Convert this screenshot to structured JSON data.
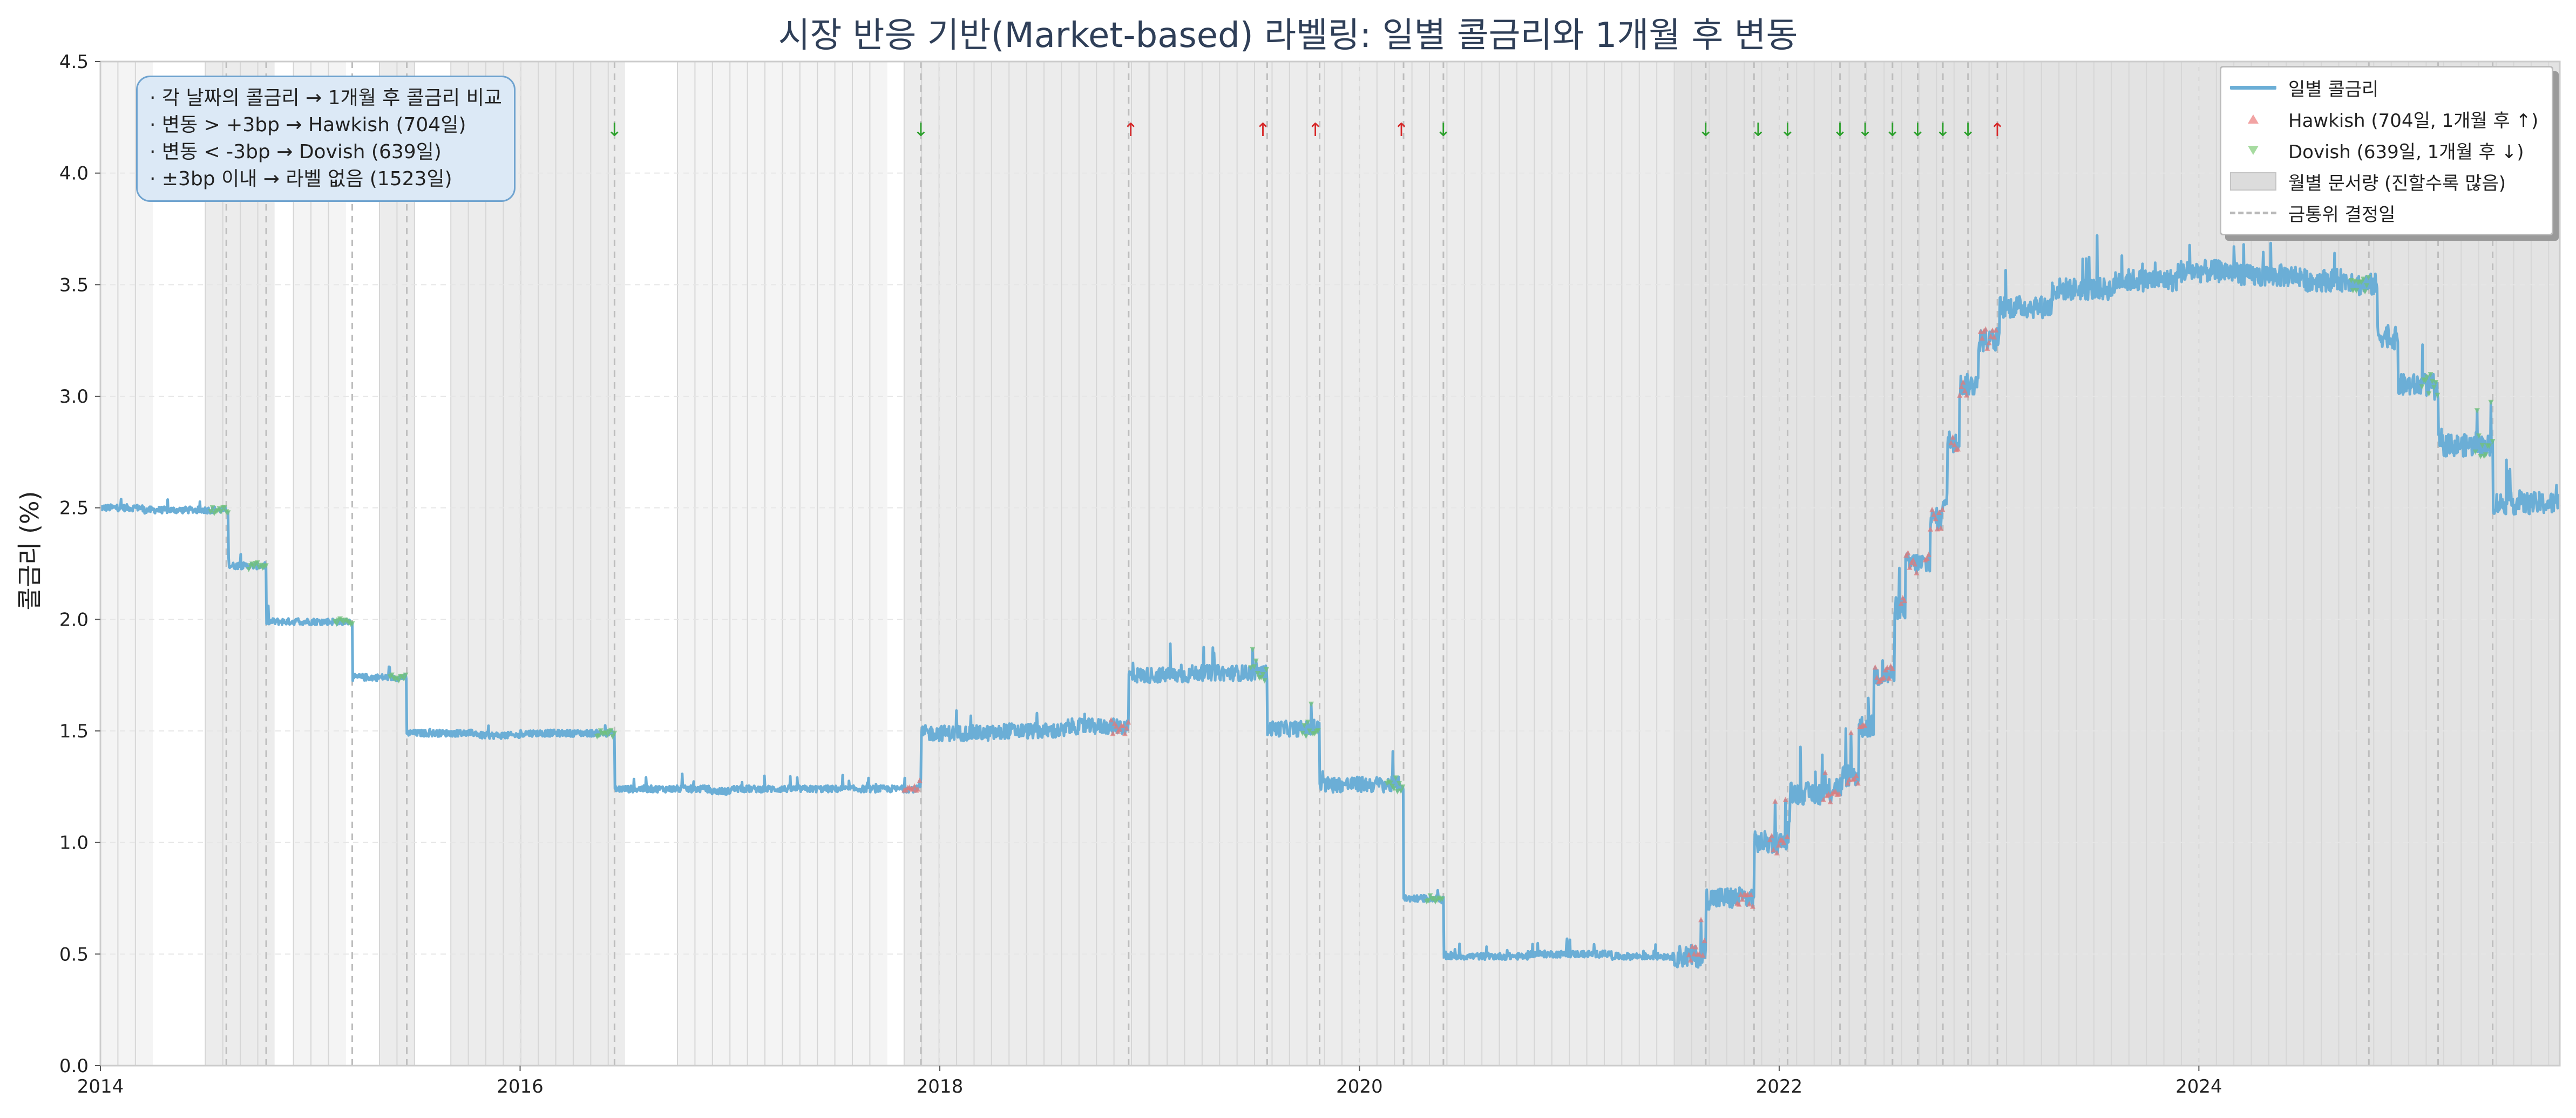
{
  "title": "시장 반응 기반(Market-based) 라벨링: 일별 콜금리와 1개월 후 변동",
  "annotation_lines": [
    "· 각 날짜의 콜금리 → 1개월 후 콜금리 비교",
    "· 변동 > +3bp → Hawkish (704일)",
    "· 변동 < -3bp → Dovish (639일)",
    "· ±3bp 이내 → 라벨 없음 (1523일)"
  ],
  "legend": {
    "line_label": "일별 콜금리",
    "hawkish_label": "Hawkish (704일, 1개월 후 ↑)",
    "dovish_label": "Dovish (639일, 1개월 후 ↓)",
    "volume_label": "월별 문서량 (진할수록 많음)",
    "decision_label": "금통위 결정일"
  },
  "colors": {
    "line": "#6baed6",
    "hawkish": "#e07b7b",
    "dovish": "#72c17a",
    "up_arrow": "#d62728",
    "down_arrow": "#2ca02c",
    "title": "#2f3f58"
  },
  "chart_data": {
    "type": "line",
    "title": "시장 반응 기반(Market-based) 라벨링: 일별 콜금리와 1개월 후 변동",
    "xlabel": "",
    "ylabel": "콜금리 (%)",
    "xlim": [
      2014.0,
      2025.72
    ],
    "ylim": [
      0.0,
      4.5
    ],
    "x_ticks": [
      2014,
      2016,
      2018,
      2020,
      2022,
      2024
    ],
    "x_tick_labels": [
      "2014",
      "2016",
      "2018",
      "2020",
      "2022",
      "2024"
    ],
    "y_ticks": [
      0.0,
      0.5,
      1.0,
      1.5,
      2.0,
      2.5,
      3.0,
      3.5,
      4.0,
      4.5
    ],
    "y_tick_labels": [
      "0.0",
      "0.5",
      "1.0",
      "1.5",
      "2.0",
      "2.5",
      "3.0",
      "3.5",
      "4.0",
      "4.5"
    ],
    "grid": true,
    "legend_position": "top-right",
    "series": [
      {
        "name": "일별 콜금리",
        "points": [
          [
            2014.0,
            2.5
          ],
          [
            2014.2,
            2.49
          ],
          [
            2014.4,
            2.49
          ],
          [
            2014.6,
            2.49
          ],
          [
            2014.61,
            2.24
          ],
          [
            2014.78,
            2.23
          ],
          [
            2014.79,
            1.99
          ],
          [
            2015.19,
            1.99
          ],
          [
            2015.2,
            1.74
          ],
          [
            2015.45,
            1.74
          ],
          [
            2015.46,
            1.49
          ],
          [
            2015.8,
            1.48
          ],
          [
            2016.0,
            1.49
          ],
          [
            2016.44,
            1.49
          ],
          [
            2016.45,
            1.24
          ],
          [
            2016.9,
            1.23
          ],
          [
            2017.0,
            1.24
          ],
          [
            2017.5,
            1.24
          ],
          [
            2017.9,
            1.25
          ],
          [
            2017.91,
            1.49
          ],
          [
            2018.3,
            1.5
          ],
          [
            2018.6,
            1.52
          ],
          [
            2018.89,
            1.52
          ],
          [
            2018.9,
            1.75
          ],
          [
            2019.2,
            1.76
          ],
          [
            2019.55,
            1.76
          ],
          [
            2019.56,
            1.51
          ],
          [
            2019.8,
            1.51
          ],
          [
            2019.81,
            1.26
          ],
          [
            2020.2,
            1.25
          ],
          [
            2020.21,
            0.75
          ],
          [
            2020.38,
            0.74
          ],
          [
            2020.4,
            0.49
          ],
          [
            2020.8,
            0.5
          ],
          [
            2021.2,
            0.49
          ],
          [
            2021.5,
            0.49
          ],
          [
            2021.64,
            0.5
          ],
          [
            2021.65,
            0.75
          ],
          [
            2021.87,
            0.76
          ],
          [
            2021.88,
            1.0
          ],
          [
            2022.04,
            1.05
          ],
          [
            2022.05,
            1.22
          ],
          [
            2022.25,
            1.25
          ],
          [
            2022.3,
            1.3
          ],
          [
            2022.38,
            1.52
          ],
          [
            2022.45,
            1.75
          ],
          [
            2022.55,
            2.05
          ],
          [
            2022.6,
            2.25
          ],
          [
            2022.72,
            2.45
          ],
          [
            2022.78,
            2.55
          ],
          [
            2022.8,
            2.8
          ],
          [
            2022.86,
            3.05
          ],
          [
            2022.95,
            3.25
          ],
          [
            2023.05,
            3.4
          ],
          [
            2023.3,
            3.48
          ],
          [
            2023.6,
            3.52
          ],
          [
            2023.9,
            3.56
          ],
          [
            2024.2,
            3.54
          ],
          [
            2024.5,
            3.52
          ],
          [
            2024.75,
            3.5
          ],
          [
            2024.85,
            3.27
          ],
          [
            2024.9,
            3.26
          ],
          [
            2024.95,
            3.05
          ],
          [
            2025.12,
            3.02
          ],
          [
            2025.14,
            2.78
          ],
          [
            2025.38,
            2.77
          ],
          [
            2025.4,
            2.52
          ],
          [
            2025.72,
            2.5
          ]
        ]
      }
    ],
    "rate_changes": [
      {
        "x": 2014.61,
        "direction": "down"
      },
      {
        "x": 2014.79,
        "direction": "down"
      },
      {
        "x": 2015.2,
        "direction": "down"
      },
      {
        "x": 2015.46,
        "direction": "down"
      },
      {
        "x": 2016.45,
        "direction": "down"
      },
      {
        "x": 2017.91,
        "direction": "up"
      },
      {
        "x": 2018.9,
        "direction": "up"
      },
      {
        "x": 2019.56,
        "direction": "down"
      },
      {
        "x": 2019.81,
        "direction": "down"
      },
      {
        "x": 2020.21,
        "direction": "down"
      },
      {
        "x": 2020.4,
        "direction": "down"
      },
      {
        "x": 2021.65,
        "direction": "up"
      },
      {
        "x": 2021.88,
        "direction": "up"
      },
      {
        "x": 2022.04,
        "direction": "up"
      },
      {
        "x": 2022.29,
        "direction": "up"
      },
      {
        "x": 2022.41,
        "direction": "up"
      },
      {
        "x": 2022.54,
        "direction": "up"
      },
      {
        "x": 2022.66,
        "direction": "up"
      },
      {
        "x": 2022.78,
        "direction": "up"
      },
      {
        "x": 2022.9,
        "direction": "up"
      },
      {
        "x": 2023.04,
        "direction": "up"
      },
      {
        "x": 2024.81,
        "direction": "down"
      },
      {
        "x": 2025.14,
        "direction": "down"
      },
      {
        "x": 2025.4,
        "direction": "down"
      }
    ],
    "markers": [
      {
        "x": 2016.45,
        "y": 4.2,
        "symbol": "↓",
        "direction": "down"
      },
      {
        "x": 2017.91,
        "y": 4.2,
        "symbol": "↓",
        "direction": "down"
      },
      {
        "x": 2018.91,
        "y": 4.2,
        "symbol": "↑",
        "direction": "up"
      },
      {
        "x": 2019.54,
        "y": 4.2,
        "symbol": "↑",
        "direction": "up"
      },
      {
        "x": 2019.79,
        "y": 4.2,
        "symbol": "↑",
        "direction": "up"
      },
      {
        "x": 2020.2,
        "y": 4.2,
        "symbol": "↑",
        "direction": "up"
      },
      {
        "x": 2020.4,
        "y": 4.2,
        "symbol": "↓",
        "direction": "down"
      },
      {
        "x": 2021.65,
        "y": 4.2,
        "symbol": "↓",
        "direction": "down"
      },
      {
        "x": 2021.9,
        "y": 4.2,
        "symbol": "↓",
        "direction": "down"
      },
      {
        "x": 2022.04,
        "y": 4.2,
        "symbol": "↓",
        "direction": "down"
      },
      {
        "x": 2022.29,
        "y": 4.2,
        "symbol": "↓",
        "direction": "down"
      },
      {
        "x": 2022.41,
        "y": 4.2,
        "symbol": "↓",
        "direction": "down"
      },
      {
        "x": 2022.54,
        "y": 4.2,
        "symbol": "↓",
        "direction": "down"
      },
      {
        "x": 2022.66,
        "y": 4.2,
        "symbol": "↓",
        "direction": "down"
      },
      {
        "x": 2022.78,
        "y": 4.2,
        "symbol": "↓",
        "direction": "down"
      },
      {
        "x": 2022.9,
        "y": 4.2,
        "symbol": "↓",
        "direction": "down"
      },
      {
        "x": 2023.04,
        "y": 4.2,
        "symbol": "↑",
        "direction": "up"
      }
    ],
    "decision_dates": [
      2014.6,
      2014.79,
      2015.2,
      2015.46,
      2016.45,
      2017.91,
      2018.9,
      2019.56,
      2019.81,
      2020.21,
      2020.4,
      2021.65,
      2021.88,
      2022.04,
      2022.29,
      2022.41,
      2022.54,
      2022.66,
      2022.78,
      2022.9,
      2023.04,
      2024.81,
      2025.14,
      2025.4
    ],
    "monthly_volume_bands": [
      {
        "start": 2014.0,
        "end": 2014.25,
        "level": 1
      },
      {
        "start": 2014.5,
        "end": 2014.83,
        "level": 2
      },
      {
        "start": 2014.92,
        "end": 2015.17,
        "level": 1
      },
      {
        "start": 2015.33,
        "end": 2015.5,
        "level": 2
      },
      {
        "start": 2015.67,
        "end": 2016.5,
        "level": 2
      },
      {
        "start": 2016.75,
        "end": 2017.75,
        "level": 1
      },
      {
        "start": 2017.83,
        "end": 2019.0,
        "level": 2
      },
      {
        "start": 2019.0,
        "end": 2020.5,
        "level": 2
      },
      {
        "start": 2020.5,
        "end": 2021.5,
        "level": 2
      },
      {
        "start": 2021.5,
        "end": 2023.0,
        "level": 3
      },
      {
        "start": 2023.0,
        "end": 2025.72,
        "level": 3
      }
    ]
  }
}
